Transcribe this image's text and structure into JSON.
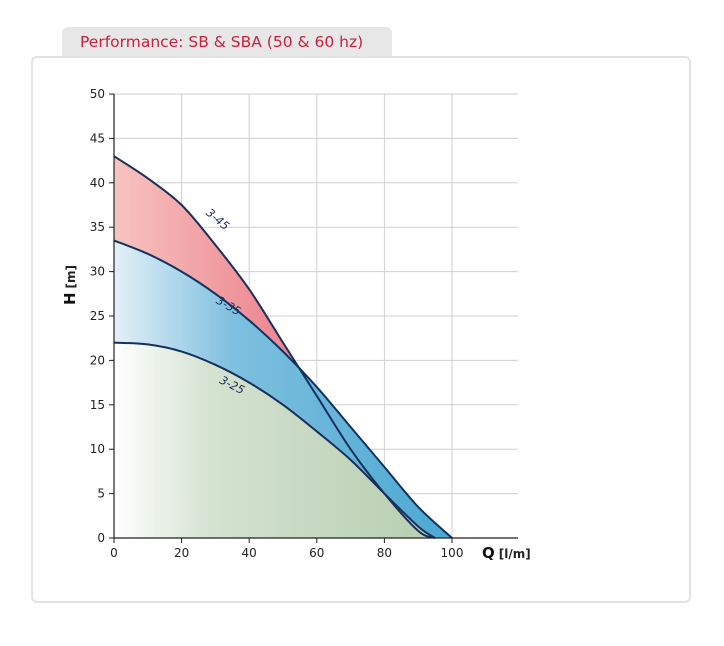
{
  "header": {
    "tab_label": "Performance: SB & SBA (50 & 60 hz)"
  },
  "chart_data": {
    "type": "area",
    "title": "Performance: SB & SBA (50 & 60 hz)",
    "xlabel": "Q",
    "xlabel_unit": "[l/m]",
    "ylabel": "H",
    "ylabel_unit": "[m]",
    "xlim": [
      0,
      100
    ],
    "ylim": [
      0,
      50
    ],
    "x_ticks": [
      0,
      20,
      40,
      60,
      80,
      100
    ],
    "y_ticks": [
      0,
      5,
      10,
      15,
      20,
      25,
      30,
      35,
      40,
      45,
      50
    ],
    "grid": true,
    "series": [
      {
        "name": "3-45",
        "color": "#e8687a",
        "points": [
          [
            0,
            43
          ],
          [
            10,
            40.5
          ],
          [
            20,
            37.5
          ],
          [
            30,
            33
          ],
          [
            40,
            28
          ],
          [
            50,
            22
          ],
          [
            60,
            16
          ],
          [
            70,
            10
          ],
          [
            80,
            5
          ],
          [
            90,
            0.8
          ],
          [
            95,
            0
          ]
        ]
      },
      {
        "name": "3-35",
        "color": "#4aa8d2",
        "points": [
          [
            0,
            33.5
          ],
          [
            10,
            32
          ],
          [
            20,
            30
          ],
          [
            30,
            27.5
          ],
          [
            40,
            24.5
          ],
          [
            50,
            21
          ],
          [
            60,
            17
          ],
          [
            70,
            12.5
          ],
          [
            80,
            8
          ],
          [
            90,
            3.5
          ],
          [
            100,
            0
          ]
        ]
      },
      {
        "name": "3-25",
        "color": "#9fbf98",
        "points": [
          [
            0,
            22
          ],
          [
            10,
            21.8
          ],
          [
            20,
            21
          ],
          [
            30,
            19.5
          ],
          [
            40,
            17.5
          ],
          [
            50,
            15
          ],
          [
            60,
            12
          ],
          [
            70,
            8.8
          ],
          [
            80,
            5
          ],
          [
            90,
            1.3
          ],
          [
            95,
            0
          ]
        ]
      }
    ]
  }
}
